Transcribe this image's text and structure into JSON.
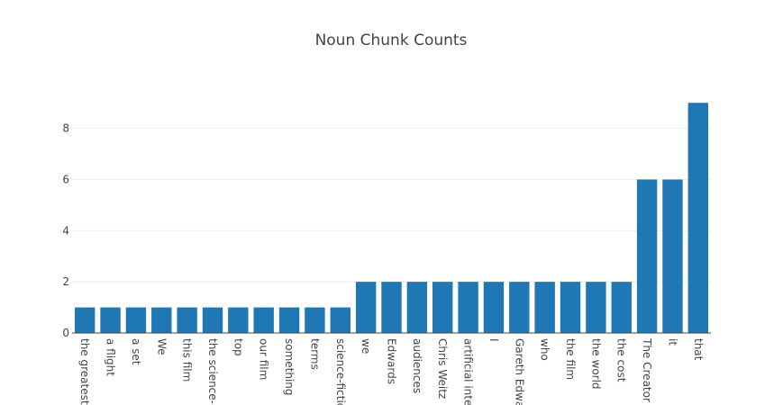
{
  "chart_data": {
    "type": "bar",
    "title": "Noun Chunk Counts",
    "xlabel": "",
    "ylabel": "",
    "ylim": [
      0,
      9.5
    ],
    "yticks": [
      0,
      2,
      4,
      6,
      8
    ],
    "grid": true,
    "color": "#1f77b4",
    "categories": [
      "the greatest",
      "a flight",
      "a set",
      "We",
      "this film",
      "the science-",
      "top",
      "our film",
      "something",
      "terms",
      "science-fictio",
      "we",
      "Edwards",
      "audiences",
      "Chris Weitz",
      "artificial inte",
      "I",
      "Gareth Edwa",
      "who",
      "the film",
      "the world",
      "the cost",
      "The Creator",
      "it",
      "that"
    ],
    "values": [
      1,
      1,
      1,
      1,
      1,
      1,
      1,
      1,
      1,
      1,
      1,
      2,
      2,
      2,
      2,
      2,
      2,
      2,
      2,
      2,
      2,
      2,
      6,
      6,
      9
    ]
  }
}
